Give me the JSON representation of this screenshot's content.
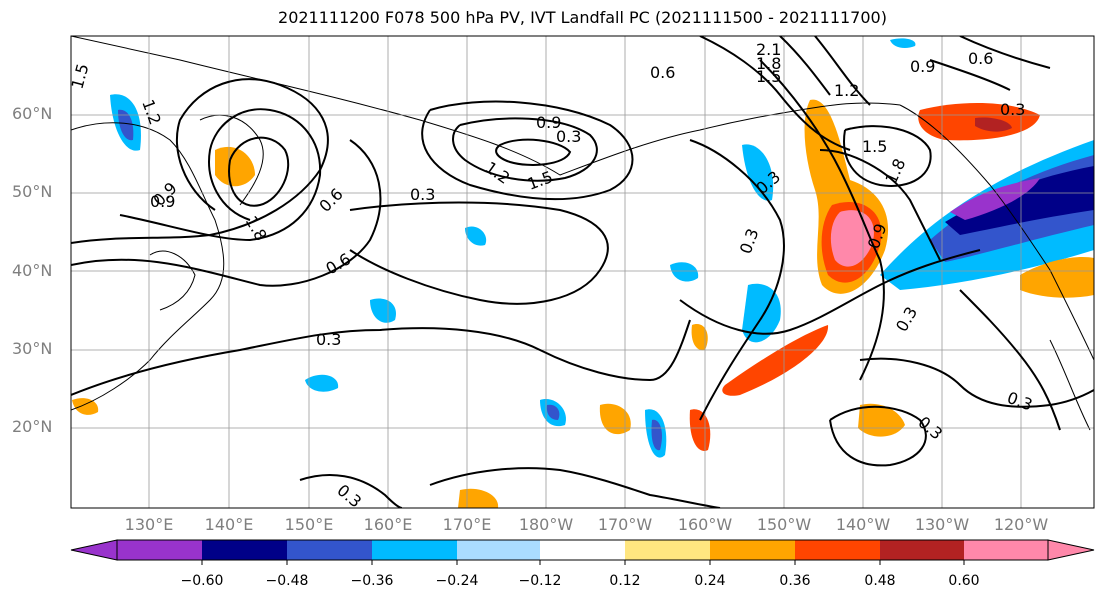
{
  "title": "2021111200 F078 500 hPa PV, IVT Landfall PC (2021111500 - 2021111700)",
  "lat_labels": [
    "60°N",
    "50°N",
    "40°N",
    "30°N",
    "20°N"
  ],
  "lon_labels": [
    "130°E",
    "140°E",
    "150°E",
    "160°E",
    "170°E",
    "180°W",
    "170°W",
    "160°W",
    "150°W",
    "140°W",
    "130°W",
    "120°W"
  ],
  "colorbar": {
    "tick_labels": [
      "−0.60",
      "−0.48",
      "−0.36",
      "−0.24",
      "−0.12",
      "0.12",
      "0.24",
      "0.36",
      "0.48",
      "0.60"
    ],
    "colors": [
      "#9933cc",
      "#000088",
      "#3355cc",
      "#00bbff",
      "#aaddff",
      "#ffffff",
      "#ffe680",
      "#ffa500",
      "#ff4500",
      "#b22222",
      "#ff88aa"
    ]
  },
  "contour_labels": [
    "1.5",
    "1.2",
    "0.9",
    "0.6",
    "0.3",
    "2.1",
    "1.8",
    "1.5",
    "1.2",
    "0.9",
    "0.6",
    "0.3",
    "1.5",
    "1.8",
    "1.5",
    "1.2",
    "0.9",
    "0.6",
    "0.3",
    "0.9",
    "0.3",
    "0.3",
    "0.3",
    "0.3",
    "0.6",
    "0.9",
    "0.3",
    "0.3",
    "0.3",
    "1.8"
  ]
}
